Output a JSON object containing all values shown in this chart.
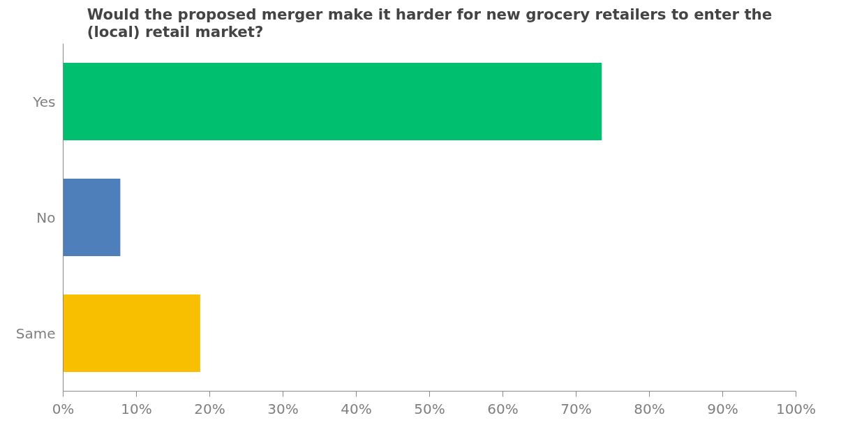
{
  "chart_data": {
    "type": "bar",
    "orientation": "horizontal",
    "title": "Would the proposed merger make it harder for new grocery retailers to enter the (local) retail market?",
    "categories": [
      "Yes",
      "No",
      "Same"
    ],
    "values": [
      73.5,
      7.8,
      18.7
    ],
    "colors": [
      "#00bf6f",
      "#4f7fba",
      "#f8bf00"
    ],
    "xlim": [
      0,
      100
    ],
    "xticks": [
      {
        "value": 0,
        "label": "0%"
      },
      {
        "value": 10,
        "label": "10%"
      },
      {
        "value": 20,
        "label": "20%"
      },
      {
        "value": 30,
        "label": "30%"
      },
      {
        "value": 40,
        "label": "40%"
      },
      {
        "value": 50,
        "label": "50%"
      },
      {
        "value": 60,
        "label": "60%"
      },
      {
        "value": 70,
        "label": "70%"
      },
      {
        "value": 80,
        "label": "80%"
      },
      {
        "value": 90,
        "label": "90%"
      },
      {
        "value": 100,
        "label": "100%"
      }
    ],
    "grid": false
  }
}
